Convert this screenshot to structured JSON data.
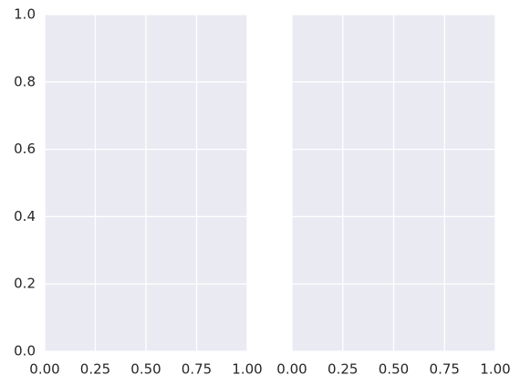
{
  "chart_data": [
    {
      "type": "line",
      "series": [],
      "xlim": [
        0,
        1
      ],
      "xticks": [
        {
          "value": 0,
          "label": "0.00"
        },
        0.25,
        {
          "value": 0.5,
          "label": "0.50"
        },
        0.75,
        {
          "value": 1,
          "label": "1.00"
        }
      ],
      "ylim": [
        0,
        1
      ],
      "yticks": [
        {
          "value": 0,
          "label": "0.0"
        },
        0.2,
        0.4,
        0.6,
        0.8,
        {
          "value": 1,
          "label": "1.0"
        }
      ],
      "grid": true
    },
    {
      "type": "line",
      "series": [],
      "xlim": [
        0,
        1
      ],
      "xticks": [
        {
          "value": 0,
          "label": "0.00"
        },
        0.25,
        {
          "value": 0.5,
          "label": "0.50"
        },
        0.75,
        {
          "value": 1,
          "label": "1.00"
        }
      ],
      "sharey": true,
      "grid": true
    }
  ]
}
